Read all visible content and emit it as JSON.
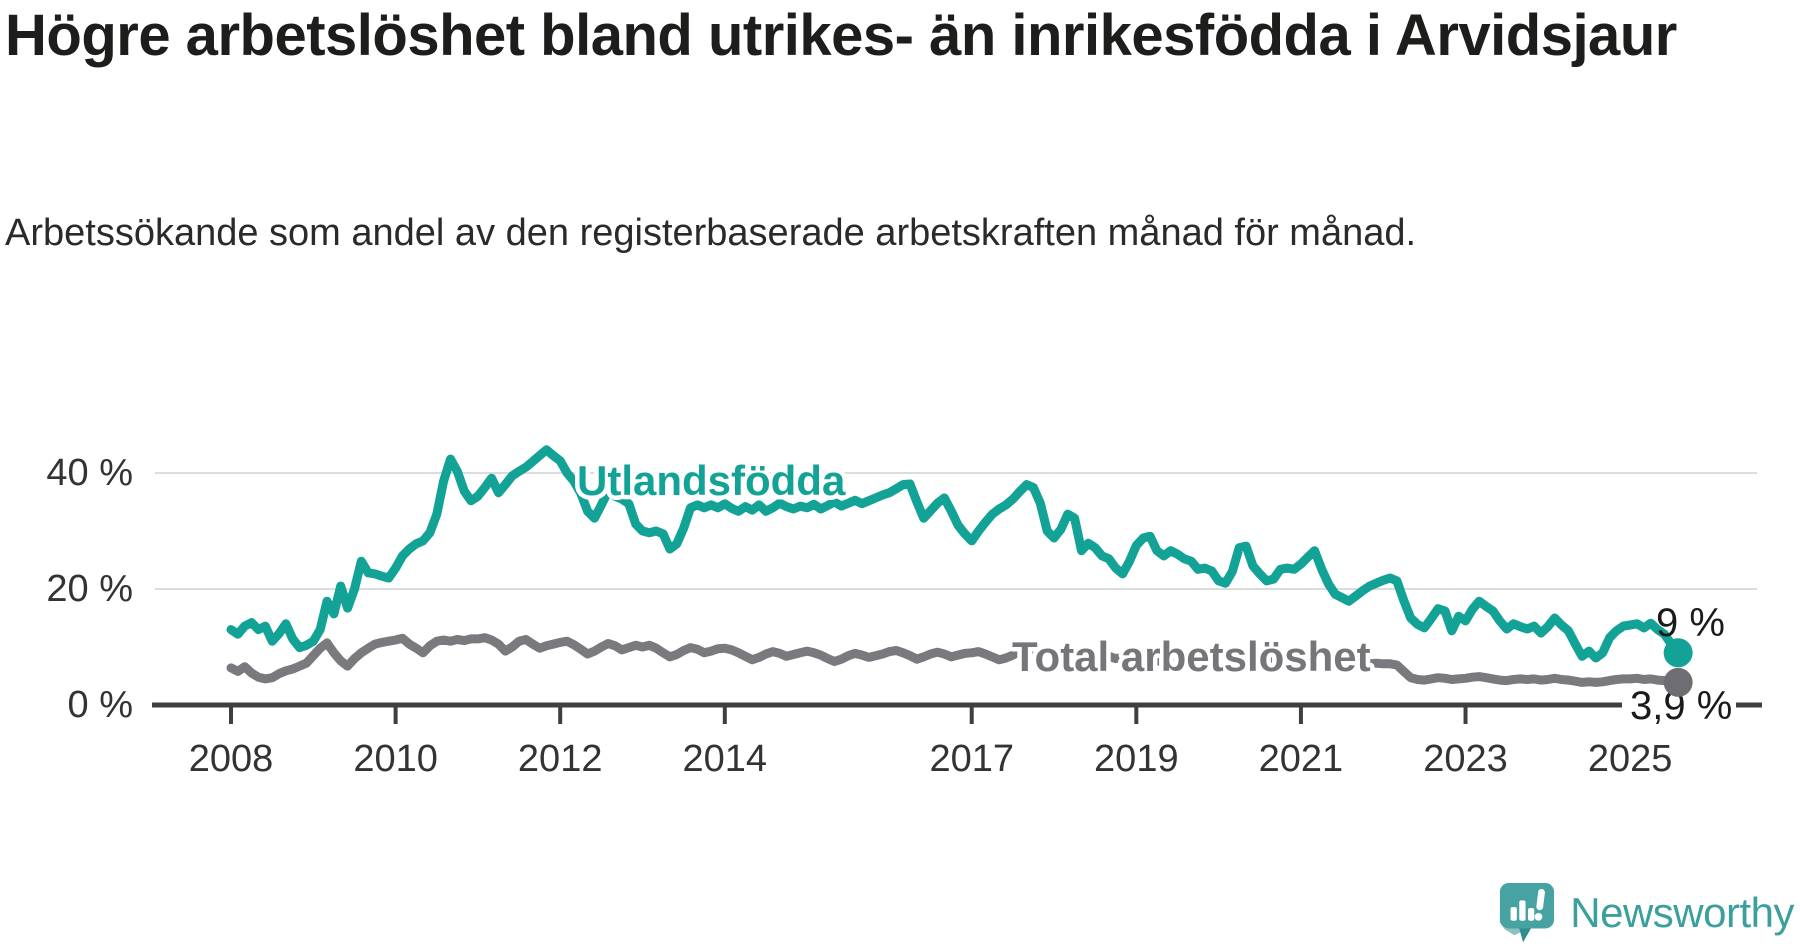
{
  "title": "Högre arbetslöshet bland utrikes- än inrikesfödda i Arvidsjaur",
  "subtitle": "Arbetssökande som andel av den registerbaserade arbetskraften månad för månad.",
  "branding": {
    "logo_text": "Newsworthy",
    "logo_color": "#47a3a1",
    "logo_dark_color": "#2f8d8b"
  },
  "colors": {
    "accent_teal": "#12a296",
    "series_gray": "#7a7a7e",
    "axis": "#3f3f42",
    "grid": "#dcdcdc",
    "tick_text": "#333333",
    "end_label_text": "#1a1a1a",
    "background": "#ffffff"
  },
  "chart_data": {
    "type": "line",
    "title": "Högre arbetslöshet bland utrikes- än inrikesfödda i Arvidsjaur",
    "subtitle": "Arbetssökande som andel av den registerbaserade arbetskraften månad för månad.",
    "x_start": "2008-01",
    "x_end": "2025-08",
    "x_frequency": "monthly",
    "x_ticks": [
      "2008",
      "2010",
      "2012",
      "2014",
      "2017",
      "2019",
      "2021",
      "2023",
      "2025"
    ],
    "x_tick_years": [
      2008,
      2010,
      2012,
      2014,
      2017,
      2019,
      2021,
      2023,
      2025
    ],
    "y_ticks": [
      {
        "value": 0,
        "label": "0 %"
      },
      {
        "value": 20,
        "label": "20 %"
      },
      {
        "value": 40,
        "label": "40 %"
      }
    ],
    "ylim": [
      0,
      46
    ],
    "grid": "horizontal",
    "legend_position": "inline-labels",
    "series": [
      {
        "name": "Utlandsfödda",
        "color": "#12a296",
        "end_label": "9 %",
        "end_value": 9.0,
        "values": [
          13.0,
          12.2,
          13.6,
          14.2,
          13.0,
          13.6,
          11.0,
          12.3,
          14.0,
          11.4,
          9.9,
          10.3,
          11.0,
          13.0,
          17.9,
          15.7,
          20.5,
          16.7,
          20.0,
          24.8,
          22.8,
          22.6,
          22.2,
          21.9,
          23.6,
          25.7,
          26.9,
          27.8,
          28.3,
          29.7,
          32.9,
          38.6,
          42.4,
          40.3,
          36.9,
          35.2,
          36.0,
          37.5,
          39.1,
          36.6,
          38.0,
          39.5,
          40.3,
          41.0,
          42.0,
          43.0,
          44.0,
          43.0,
          42.1,
          40.0,
          38.6,
          36.5,
          33.4,
          32.2,
          34.5,
          36.9,
          36.0,
          35.5,
          34.7,
          31.2,
          30.0,
          29.7,
          30.0,
          29.5,
          26.9,
          27.8,
          30.5,
          34.0,
          34.5,
          34.0,
          34.5,
          34.0,
          34.7,
          33.9,
          33.4,
          34.2,
          33.6,
          34.5,
          33.4,
          34.0,
          34.8,
          34.2,
          33.8,
          34.3,
          34.0,
          34.6,
          33.8,
          34.4,
          35.0,
          34.3,
          34.8,
          35.3,
          34.7,
          35.2,
          35.7,
          36.2,
          36.6,
          37.3,
          38.0,
          38.1,
          35.0,
          32.2,
          33.5,
          34.8,
          35.7,
          33.5,
          31.0,
          29.5,
          28.3,
          30.0,
          31.5,
          32.9,
          33.8,
          34.5,
          35.5,
          36.8,
          38.0,
          37.5,
          34.8,
          30.0,
          28.8,
          30.3,
          32.9,
          32.2,
          26.6,
          27.9,
          27.1,
          25.7,
          25.2,
          23.6,
          22.6,
          24.8,
          27.5,
          28.8,
          29.1,
          26.6,
          25.7,
          26.6,
          26.0,
          25.2,
          24.8,
          23.4,
          23.6,
          23.1,
          21.4,
          21.0,
          23.0,
          27.1,
          27.4,
          24.0,
          22.6,
          21.4,
          21.7,
          23.4,
          23.6,
          23.4,
          24.3,
          25.5,
          26.6,
          23.5,
          20.9,
          19.1,
          18.5,
          17.9,
          18.8,
          19.7,
          20.5,
          21.0,
          21.5,
          21.9,
          21.4,
          18.0,
          15.0,
          13.9,
          13.3,
          14.9,
          16.6,
          16.2,
          12.8,
          15.3,
          14.5,
          16.5,
          17.9,
          17.0,
          16.2,
          14.5,
          13.1,
          14.0,
          13.5,
          13.1,
          13.6,
          12.4,
          13.5,
          15.0,
          13.8,
          12.8,
          10.5,
          8.4,
          9.3,
          8.1,
          9.0,
          11.6,
          12.8,
          13.6,
          13.8,
          14.0,
          13.3,
          14.1,
          13.0,
          12.2,
          10.5,
          9.0
        ]
      },
      {
        "name": "Total arbetslöshet",
        "color": "#7a7a7e",
        "end_label": "3,9 %",
        "end_value": 3.9,
        "values": [
          6.4,
          5.8,
          6.6,
          5.5,
          4.8,
          4.5,
          4.7,
          5.4,
          5.9,
          6.2,
          6.7,
          7.2,
          8.5,
          9.8,
          10.7,
          9.0,
          7.6,
          6.7,
          8.0,
          9.0,
          9.8,
          10.5,
          10.8,
          11.0,
          11.2,
          11.5,
          10.5,
          9.8,
          9.0,
          10.2,
          11.0,
          11.2,
          11.0,
          11.3,
          11.1,
          11.4,
          11.4,
          11.6,
          11.2,
          10.5,
          9.3,
          10.0,
          11.0,
          11.3,
          10.5,
          9.8,
          10.2,
          10.5,
          10.8,
          11.0,
          10.4,
          9.6,
          8.8,
          9.3,
          10.0,
          10.6,
          10.2,
          9.5,
          9.9,
          10.3,
          10.0,
          10.3,
          9.8,
          9.0,
          8.3,
          8.7,
          9.4,
          9.9,
          9.6,
          9.0,
          9.3,
          9.7,
          9.8,
          9.5,
          9.0,
          8.4,
          7.8,
          8.2,
          8.8,
          9.2,
          8.9,
          8.4,
          8.7,
          9.0,
          9.3,
          9.0,
          8.6,
          8.0,
          7.5,
          7.9,
          8.5,
          8.9,
          8.6,
          8.2,
          8.5,
          8.8,
          9.2,
          9.4,
          9.0,
          8.5,
          7.9,
          8.3,
          8.8,
          9.1,
          8.8,
          8.3,
          8.6,
          8.9,
          9.0,
          9.2,
          8.8,
          8.3,
          7.8,
          8.1,
          8.6,
          9.3,
          9.7,
          9.4,
          9.0,
          9.5,
          9.2,
          9.0,
          8.7,
          8.2,
          7.7,
          8.0,
          8.4,
          8.7,
          8.4,
          8.0,
          8.2,
          8.5,
          8.6,
          8.4,
          8.1,
          7.7,
          7.3,
          7.6,
          8.0,
          8.3,
          8.0,
          7.6,
          7.8,
          8.1,
          8.0,
          7.8,
          8.3,
          9.0,
          8.8,
          8.4,
          8.0,
          7.7,
          7.9,
          8.1,
          8.0,
          8.2,
          8.1,
          8.3,
          8.0,
          7.6,
          7.2,
          7.0,
          6.8,
          6.6,
          6.8,
          7.0,
          7.1,
          7.2,
          7.1,
          7.1,
          6.9,
          5.8,
          4.7,
          4.4,
          4.3,
          4.5,
          4.7,
          4.6,
          4.4,
          4.5,
          4.6,
          4.8,
          4.9,
          4.7,
          4.5,
          4.3,
          4.2,
          4.4,
          4.5,
          4.4,
          4.5,
          4.3,
          4.4,
          4.6,
          4.4,
          4.3,
          4.1,
          3.9,
          4.0,
          3.9,
          4.0,
          4.2,
          4.4,
          4.5,
          4.5,
          4.6,
          4.4,
          4.5,
          4.3,
          4.2,
          4.0,
          3.9
        ]
      }
    ]
  }
}
